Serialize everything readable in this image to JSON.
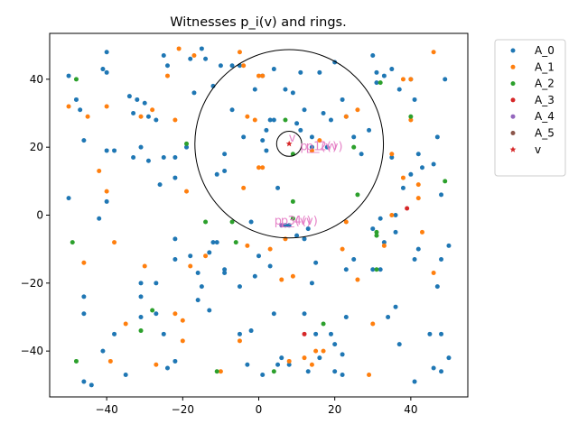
{
  "chart_data": {
    "type": "scatter",
    "title": "Witnesses p_i(v) and rings.",
    "xlabel": "",
    "ylabel": "",
    "xlim": [
      -55,
      55
    ],
    "ylim": [
      -53.5,
      53.5
    ],
    "x_ticks": [
      -40,
      -20,
      0,
      20,
      40
    ],
    "y_ticks": [
      -40,
      -20,
      0,
      20,
      40
    ],
    "grid": false,
    "legend": "outside-top-right",
    "series": [
      {
        "name": "A_0",
        "color": "#1f77b4",
        "marker": "circle",
        "points": [
          [
            -50,
            41
          ],
          [
            -48,
            34
          ],
          [
            -47,
            31
          ],
          [
            -40,
            48
          ],
          [
            -41,
            43
          ],
          [
            -40,
            42
          ],
          [
            -46,
            22
          ],
          [
            -40,
            19
          ],
          [
            -38,
            19
          ],
          [
            -40,
            4
          ],
          [
            -42,
            -1
          ],
          [
            -50,
            5
          ],
          [
            -46,
            -24
          ],
          [
            -46,
            -29
          ],
          [
            -38,
            -35
          ],
          [
            -41,
            -40
          ],
          [
            -46,
            -49
          ],
          [
            -44,
            -50
          ],
          [
            -35,
            -47
          ],
          [
            -34,
            35
          ],
          [
            -32,
            34
          ],
          [
            -33,
            30
          ],
          [
            -30,
            33
          ],
          [
            -29,
            29
          ],
          [
            -31,
            20
          ],
          [
            -33,
            17
          ],
          [
            -29,
            16
          ],
          [
            -27,
            28
          ],
          [
            -25,
            17
          ],
          [
            -22,
            17
          ],
          [
            -26,
            9
          ],
          [
            -22,
            11
          ],
          [
            -25,
            47
          ],
          [
            -24,
            44
          ],
          [
            -18,
            46
          ],
          [
            -15,
            49
          ],
          [
            -14,
            46
          ],
          [
            -17,
            36
          ],
          [
            -12,
            38
          ],
          [
            -10,
            44
          ],
          [
            -7,
            44
          ],
          [
            -5,
            44
          ],
          [
            -7,
            31
          ],
          [
            -9,
            18
          ],
          [
            -9,
            13
          ],
          [
            -11,
            12
          ],
          [
            -12,
            -8
          ],
          [
            -11,
            -8
          ],
          [
            -13,
            -11
          ],
          [
            -9,
            -16
          ],
          [
            -9,
            -17
          ],
          [
            -5,
            -21
          ],
          [
            -22,
            -7
          ],
          [
            -22,
            -13
          ],
          [
            -18,
            -12
          ],
          [
            -16,
            -17
          ],
          [
            -15,
            -21
          ],
          [
            -16,
            -25
          ],
          [
            -13,
            -28
          ],
          [
            -31,
            -20
          ],
          [
            -31,
            -24
          ],
          [
            -27,
            -20
          ],
          [
            -31,
            -30
          ],
          [
            -27,
            -29
          ],
          [
            -25,
            -35
          ],
          [
            -22,
            -43
          ],
          [
            -24,
            -45
          ],
          [
            -5,
            -35
          ],
          [
            -2,
            -34
          ],
          [
            -1,
            -18
          ],
          [
            -3,
            -44
          ],
          [
            1,
            -47
          ],
          [
            4,
            -29
          ],
          [
            5,
            -44
          ],
          [
            6,
            -42
          ],
          [
            8,
            -44
          ],
          [
            4,
            28
          ],
          [
            2,
            25
          ],
          [
            1,
            22
          ],
          [
            2,
            19
          ],
          [
            -1,
            37
          ],
          [
            1,
            41
          ],
          [
            4,
            43
          ],
          [
            7,
            37
          ],
          [
            9,
            36
          ],
          [
            11,
            42
          ],
          [
            10,
            27
          ],
          [
            12,
            31
          ],
          [
            14,
            23
          ],
          [
            11,
            25
          ],
          [
            14,
            20
          ],
          [
            17,
            30
          ],
          [
            19,
            28
          ],
          [
            16,
            42
          ],
          [
            20,
            45
          ],
          [
            22,
            34
          ],
          [
            23,
            29
          ],
          [
            25,
            23
          ],
          [
            18,
            20
          ],
          [
            27,
            18
          ],
          [
            29,
            25
          ],
          [
            30,
            47
          ],
          [
            33,
            41
          ],
          [
            31,
            39
          ],
          [
            35,
            43
          ],
          [
            37,
            37
          ],
          [
            40,
            40
          ],
          [
            41,
            34
          ],
          [
            42,
            18
          ],
          [
            43,
            14
          ],
          [
            47,
            23
          ],
          [
            46,
            15
          ],
          [
            48,
            6
          ],
          [
            40,
            12
          ],
          [
            38,
            8
          ],
          [
            35,
            17
          ],
          [
            36,
            0
          ],
          [
            32,
            -1
          ],
          [
            30,
            -4
          ],
          [
            33,
            -8
          ],
          [
            36,
            -5
          ],
          [
            41,
            -13
          ],
          [
            42,
            -10
          ],
          [
            47,
            -21
          ],
          [
            50,
            -9
          ],
          [
            48,
            -13
          ],
          [
            45,
            -35
          ],
          [
            48,
            -35
          ],
          [
            46,
            -45
          ],
          [
            48,
            -46
          ],
          [
            50,
            -42
          ],
          [
            41,
            -49
          ],
          [
            37,
            -38
          ],
          [
            36,
            -27
          ],
          [
            34,
            -30
          ],
          [
            30,
            -16
          ],
          [
            32,
            -16
          ],
          [
            23,
            -16
          ],
          [
            23,
            -30
          ],
          [
            19,
            -35
          ],
          [
            20,
            -38
          ],
          [
            22,
            -41
          ],
          [
            22,
            -47
          ],
          [
            16,
            -42
          ],
          [
            13,
            -46
          ],
          [
            12,
            -29
          ],
          [
            15,
            -14
          ],
          [
            14,
            -20
          ],
          [
            13,
            -4
          ],
          [
            10,
            -6
          ],
          [
            12,
            -7
          ],
          [
            7,
            -3
          ],
          [
            5,
            8
          ],
          [
            3,
            28
          ],
          [
            0,
            -12
          ],
          [
            -2,
            -2
          ],
          [
            -4,
            23
          ],
          [
            8,
            -3
          ],
          [
            20,
            -46
          ],
          [
            25,
            -13
          ],
          [
            15,
            -35
          ],
          [
            3,
            -15
          ],
          [
            49,
            40
          ],
          [
            31,
            42
          ],
          [
            -19,
            20
          ]
        ]
      },
      {
        "name": "A_1",
        "color": "#ff7f0e",
        "marker": "circle",
        "points": [
          [
            -50,
            32
          ],
          [
            -45,
            29
          ],
          [
            -40,
            32
          ],
          [
            -31,
            29
          ],
          [
            -28,
            31
          ],
          [
            -24,
            41
          ],
          [
            -22,
            28
          ],
          [
            -21,
            49
          ],
          [
            -17,
            47
          ],
          [
            -14,
            -12
          ],
          [
            -20,
            -37
          ],
          [
            -20,
            -31
          ],
          [
            -22,
            -29
          ],
          [
            -27,
            -44
          ],
          [
            -30,
            -15
          ],
          [
            -35,
            -32
          ],
          [
            -39,
            -43
          ],
          [
            -38,
            -8
          ],
          [
            -42,
            13
          ],
          [
            -40,
            7
          ],
          [
            -46,
            -14
          ],
          [
            -18,
            -15
          ],
          [
            -19,
            7
          ],
          [
            -10,
            -46
          ],
          [
            -5,
            -37
          ],
          [
            -3,
            -9
          ],
          [
            -4,
            44
          ],
          [
            -4,
            8
          ],
          [
            -3,
            29
          ],
          [
            -1,
            28
          ],
          [
            0,
            14
          ],
          [
            1,
            14
          ],
          [
            0,
            41
          ],
          [
            1,
            41
          ],
          [
            3,
            -10
          ],
          [
            6,
            -19
          ],
          [
            7,
            -7
          ],
          [
            8,
            -43
          ],
          [
            12,
            -42
          ],
          [
            15,
            -40
          ],
          [
            17,
            -40
          ],
          [
            14,
            -44
          ],
          [
            9,
            -18
          ],
          [
            14,
            19
          ],
          [
            16,
            22
          ],
          [
            23,
            29
          ],
          [
            26,
            31
          ],
          [
            22,
            -10
          ],
          [
            23,
            -2
          ],
          [
            26,
            -19
          ],
          [
            29,
            -47
          ],
          [
            30,
            -32
          ],
          [
            33,
            -9
          ],
          [
            35,
            0
          ],
          [
            35,
            18
          ],
          [
            38,
            11
          ],
          [
            40,
            28
          ],
          [
            42,
            5
          ],
          [
            42,
            9
          ],
          [
            43,
            -5
          ],
          [
            46,
            -17
          ],
          [
            46,
            48
          ],
          [
            38,
            40
          ],
          [
            40,
            40
          ],
          [
            -5,
            48
          ]
        ]
      },
      {
        "name": "A_2",
        "color": "#2ca02c",
        "marker": "circle",
        "points": [
          [
            -48,
            40
          ],
          [
            -49,
            -8
          ],
          [
            -48,
            -43
          ],
          [
            -31,
            -34
          ],
          [
            -28,
            -28
          ],
          [
            -19,
            21
          ],
          [
            -7,
            -2
          ],
          [
            -11,
            -46
          ],
          [
            -6,
            -8
          ],
          [
            4,
            -46
          ],
          [
            7,
            28
          ],
          [
            9,
            -1
          ],
          [
            9,
            4
          ],
          [
            9,
            18
          ],
          [
            17,
            -32
          ],
          [
            25,
            20
          ],
          [
            26,
            6
          ],
          [
            31,
            -5
          ],
          [
            31,
            -6
          ],
          [
            31,
            -16
          ],
          [
            32,
            39
          ],
          [
            40,
            29
          ],
          [
            49,
            10
          ],
          [
            -14,
            -2
          ]
        ]
      },
      {
        "name": "A_3",
        "color": "#d62728",
        "marker": "circle",
        "points": [
          [
            12,
            -35
          ],
          [
            39,
            2
          ]
        ]
      },
      {
        "name": "A_4",
        "color": "#9467bd",
        "marker": "circle",
        "points": [
          [
            6,
            -3
          ]
        ]
      },
      {
        "name": "A_5",
        "color": "#8c564b",
        "marker": "circle",
        "points": []
      },
      {
        "name": "v",
        "color": "#d62728",
        "marker": "star",
        "points": [
          [
            8,
            21
          ]
        ]
      }
    ],
    "rings": [
      {
        "center": [
          8,
          21
        ],
        "radius": 3.3
      },
      {
        "center": [
          8,
          21
        ],
        "radius": 24.8
      }
    ],
    "annotations": [
      {
        "text": "v",
        "x": 7.9,
        "y": 21.6,
        "color": "#e377c2"
      },
      {
        "text": "p_1(v)",
        "x": 10.9,
        "y": 19.1,
        "color": "#e377c2"
      },
      {
        "text": "p_2(v)",
        "x": 12.4,
        "y": 19.1,
        "color": "#e377c2"
      },
      {
        "text": "p_3(v)",
        "x": 4.1,
        "y": -2.8,
        "color": "#e377c2"
      },
      {
        "text": "p_4(v)",
        "x": 5.8,
        "y": -2.8,
        "color": "#e377c2"
      }
    ]
  }
}
